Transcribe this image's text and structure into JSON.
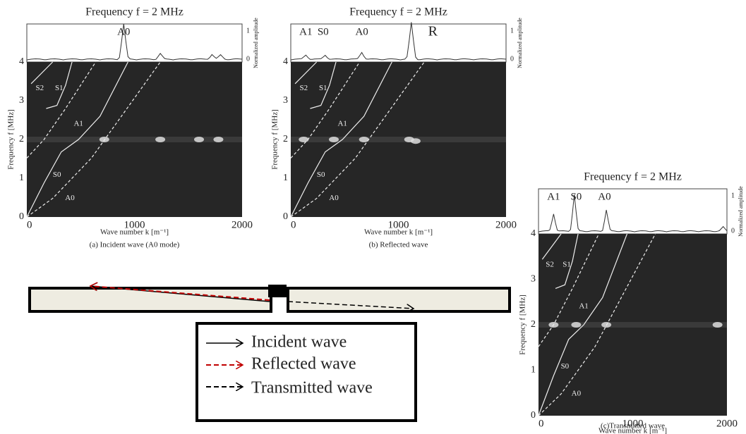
{
  "panels": [
    {
      "title": "Frequency f = 2 MHz",
      "amplitude_label": "Normalized amplitude",
      "amplitude_ticks": [
        "1",
        "0"
      ],
      "peak_labels": [
        "A0"
      ],
      "y_label": "Frequency f [MHz]",
      "y_ticks": [
        "0",
        "1",
        "2",
        "3",
        "4"
      ],
      "x_ticks": [
        "0",
        "1000",
        "2000"
      ],
      "x_label": "Wave number k [m⁻¹]",
      "curve_labels": [
        "S2",
        "S1",
        "A1",
        "S0",
        "A0"
      ],
      "caption": "(a) Incident wave (A0 mode)"
    },
    {
      "title": "Frequency f = 2 MHz",
      "amplitude_label": "Normalized amplitude",
      "amplitude_ticks": [
        "1",
        "0"
      ],
      "peak_labels": [
        "A1",
        "S0",
        "A0",
        "R"
      ],
      "y_label": "Frequency f [MHz]",
      "y_ticks": [
        "0",
        "1",
        "2",
        "3",
        "4"
      ],
      "x_ticks": [
        "0",
        "1000",
        "2000"
      ],
      "x_label": "Wave number k [m⁻¹]",
      "curve_labels": [
        "S2",
        "S1",
        "A1",
        "S0",
        "A0"
      ],
      "caption": "(b) Reflected wave"
    },
    {
      "title": "Frequency f = 2 MHz",
      "amplitude_label": "Normalized amplitude",
      "amplitude_ticks": [
        "1",
        "0"
      ],
      "peak_labels": [
        "A1",
        "S0",
        "A0"
      ],
      "y_label": "Frequency f [MHz]",
      "y_ticks": [
        "0",
        "1",
        "2",
        "3",
        "4"
      ],
      "x_ticks": [
        "0",
        "1000",
        "2000"
      ],
      "x_label": "Wave number k [m⁻¹]",
      "curve_labels": [
        "S2",
        "S1",
        "A1",
        "S0",
        "A0"
      ],
      "caption": "(c)Transmitted wave"
    }
  ],
  "legend": [
    "Incident wave",
    "Reflected wave",
    "Transmitted wave"
  ]
}
